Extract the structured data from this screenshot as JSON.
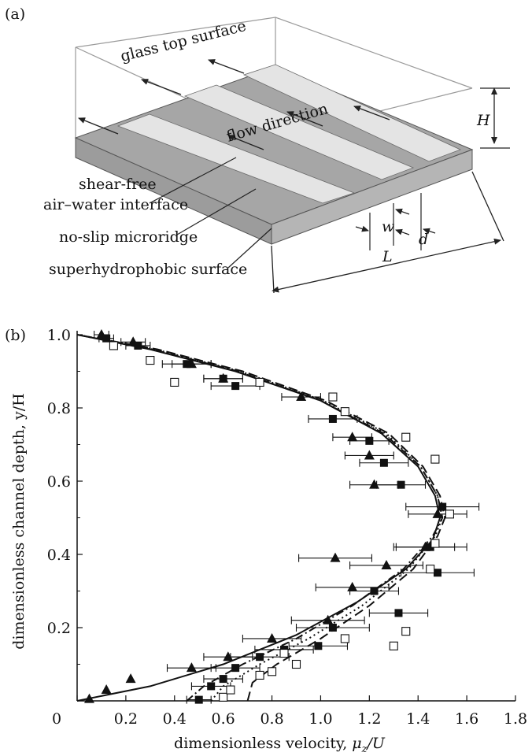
{
  "panel_a": {
    "label": "(a)",
    "labels": {
      "glass_top": "glass top surface",
      "flow_direction": "flow direction",
      "shear_free_1": "shear-free",
      "shear_free_2": "air–water interface",
      "microridge": "no-slip microridge",
      "surface": "superhydrophobic surface",
      "H": "H",
      "w": "w",
      "d": "d",
      "L": "L"
    }
  },
  "chart_data": {
    "type": "scatter",
    "panel_label": "(b)",
    "title": "",
    "xlabel_main": "dimensionless velocity, ",
    "xlabel_var": "μ",
    "xlabel_sub": "z",
    "xlabel_end": "/U",
    "ylabel": "dimensionless channel depth, y/H",
    "xlim": [
      0,
      1.8
    ],
    "ylim": [
      0,
      1.0
    ],
    "x_ticks": [
      "0",
      "0.2",
      "0.4",
      "0.6",
      "0.8",
      "1.0",
      "1.2",
      "1.4",
      "1.6",
      "1.8"
    ],
    "y_ticks": [
      "0.2",
      "0.4",
      "0.6",
      "0.8",
      "1.0"
    ],
    "series": [
      {
        "marker": "triangle",
        "points": [
          [
            0.05,
            0.005
          ],
          [
            0.12,
            0.03
          ],
          [
            0.22,
            0.06
          ],
          [
            0.47,
            0.09
          ],
          [
            0.62,
            0.12
          ],
          [
            0.8,
            0.17
          ],
          [
            1.03,
            0.22
          ],
          [
            1.13,
            0.31
          ],
          [
            1.27,
            0.37
          ],
          [
            1.06,
            0.39
          ],
          [
            1.43,
            0.42
          ],
          [
            1.48,
            0.51
          ],
          [
            1.22,
            0.59
          ],
          [
            1.2,
            0.67
          ],
          [
            1.13,
            0.72
          ],
          [
            0.92,
            0.83
          ],
          [
            0.6,
            0.88
          ],
          [
            0.47,
            0.92
          ],
          [
            0.23,
            0.98
          ],
          [
            0.1,
            1.0
          ]
        ],
        "xerr": [
          0,
          0,
          0,
          0.1,
          0.1,
          0.12,
          0.15,
          0.15,
          0.15,
          0.15,
          0.12,
          0.12,
          0.1,
          0.1,
          0.08,
          0.08,
          0.08,
          0.08,
          0.05,
          0.03
        ]
      },
      {
        "marker": "filled-square",
        "points": [
          [
            0.5,
            0.003
          ],
          [
            0.55,
            0.04
          ],
          [
            0.6,
            0.06
          ],
          [
            0.65,
            0.09
          ],
          [
            0.75,
            0.12
          ],
          [
            0.85,
            0.14
          ],
          [
            0.99,
            0.15
          ],
          [
            1.05,
            0.2
          ],
          [
            1.32,
            0.24
          ],
          [
            1.22,
            0.3
          ],
          [
            1.48,
            0.35
          ],
          [
            1.45,
            0.42
          ],
          [
            1.5,
            0.53
          ],
          [
            1.33,
            0.59
          ],
          [
            1.26,
            0.65
          ],
          [
            1.2,
            0.71
          ],
          [
            1.05,
            0.77
          ],
          [
            0.65,
            0.86
          ],
          [
            0.6,
            0.88
          ],
          [
            0.45,
            0.92
          ],
          [
            0.25,
            0.97
          ],
          [
            0.12,
            0.99
          ]
        ],
        "xerr": [
          0.05,
          0.08,
          0.08,
          0.1,
          0.12,
          0.12,
          0.12,
          0.15,
          0.12,
          0.1,
          0.15,
          0.15,
          0.15,
          0.1,
          0.1,
          0.08,
          0.1,
          0.1,
          0.08,
          0.1,
          0.05,
          0.03
        ]
      },
      {
        "marker": "open-square",
        "points": [
          [
            0.6,
            0.01
          ],
          [
            0.63,
            0.03
          ],
          [
            0.75,
            0.07
          ],
          [
            0.8,
            0.08
          ],
          [
            0.9,
            0.1
          ],
          [
            0.85,
            0.13
          ],
          [
            1.1,
            0.17
          ],
          [
            1.3,
            0.15
          ],
          [
            1.35,
            0.19
          ],
          [
            1.45,
            0.36
          ],
          [
            1.47,
            0.43
          ],
          [
            1.53,
            0.51
          ],
          [
            1.47,
            0.66
          ],
          [
            1.35,
            0.72
          ],
          [
            1.1,
            0.79
          ],
          [
            1.05,
            0.83
          ],
          [
            0.75,
            0.87
          ],
          [
            0.4,
            0.87
          ],
          [
            0.3,
            0.93
          ],
          [
            0.15,
            0.97
          ]
        ]
      }
    ],
    "curves": [
      {
        "style": "solid",
        "points": [
          [
            0,
            0
          ],
          [
            0.3,
            0.04
          ],
          [
            0.6,
            0.1
          ],
          [
            0.9,
            0.18
          ],
          [
            1.15,
            0.27
          ],
          [
            1.35,
            0.36
          ],
          [
            1.46,
            0.44
          ],
          [
            1.49,
            0.5
          ],
          [
            1.47,
            0.56
          ],
          [
            1.4,
            0.64
          ],
          [
            1.25,
            0.73
          ],
          [
            1.0,
            0.82
          ],
          [
            0.65,
            0.9
          ],
          [
            0.3,
            0.96
          ],
          [
            0,
            1.0
          ]
        ]
      },
      {
        "style": "dashed",
        "points": [
          [
            0.7,
            0.0
          ],
          [
            0.72,
            0.05
          ],
          [
            0.82,
            0.1
          ],
          [
            1.0,
            0.17
          ],
          [
            1.2,
            0.26
          ],
          [
            1.38,
            0.36
          ],
          [
            1.48,
            0.45
          ],
          [
            1.51,
            0.5
          ],
          [
            1.49,
            0.56
          ],
          [
            1.42,
            0.64
          ],
          [
            1.28,
            0.73
          ],
          [
            1.02,
            0.82
          ],
          [
            0.68,
            0.9
          ],
          [
            0.33,
            0.96
          ],
          [
            0,
            1.0
          ]
        ]
      },
      {
        "style": "dotted",
        "points": [
          [
            0.55,
            0.0
          ],
          [
            0.6,
            0.04
          ],
          [
            0.75,
            0.1
          ],
          [
            0.95,
            0.17
          ],
          [
            1.17,
            0.26
          ],
          [
            1.36,
            0.36
          ],
          [
            1.47,
            0.45
          ],
          [
            1.5,
            0.5
          ],
          [
            1.48,
            0.56
          ],
          [
            1.41,
            0.64
          ],
          [
            1.27,
            0.73
          ],
          [
            1.01,
            0.82
          ],
          [
            0.67,
            0.9
          ],
          [
            0.32,
            0.96
          ],
          [
            0,
            1.0
          ]
        ]
      },
      {
        "style": "dashdot",
        "points": [
          [
            0.45,
            0.0
          ],
          [
            0.52,
            0.04
          ],
          [
            0.68,
            0.1
          ],
          [
            0.9,
            0.17
          ],
          [
            1.13,
            0.26
          ],
          [
            1.34,
            0.36
          ],
          [
            1.46,
            0.45
          ],
          [
            1.5,
            0.5
          ],
          [
            1.48,
            0.56
          ],
          [
            1.41,
            0.64
          ],
          [
            1.26,
            0.73
          ],
          [
            1.0,
            0.82
          ],
          [
            0.66,
            0.9
          ],
          [
            0.31,
            0.96
          ],
          [
            0,
            1.0
          ]
        ]
      }
    ]
  }
}
